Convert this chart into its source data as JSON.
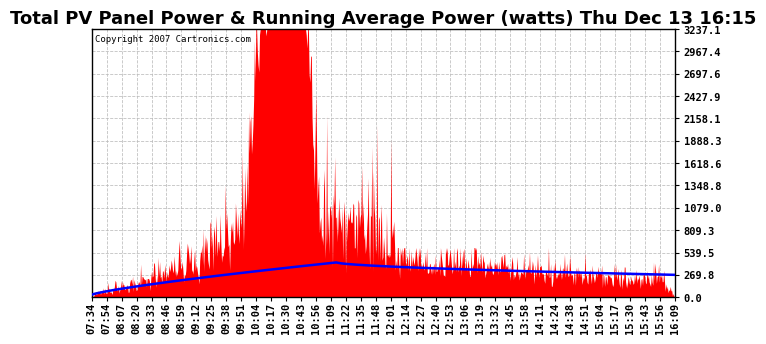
{
  "title": "Total PV Panel Power & Running Average Power (watts) Thu Dec 13 16:15",
  "copyright": "Copyright 2007 Cartronics.com",
  "ylabel_ticks": [
    0.0,
    269.8,
    539.5,
    809.3,
    1079.0,
    1348.8,
    1618.6,
    1888.3,
    2158.1,
    2427.9,
    2697.6,
    2967.4,
    3237.1
  ],
  "xlabels": [
    "07:34",
    "07:54",
    "08:07",
    "08:20",
    "08:33",
    "08:46",
    "08:59",
    "09:12",
    "09:25",
    "09:38",
    "09:51",
    "10:04",
    "10:17",
    "10:30",
    "10:43",
    "10:56",
    "11:09",
    "11:22",
    "11:35",
    "11:48",
    "12:01",
    "12:14",
    "12:27",
    "12:40",
    "12:53",
    "13:06",
    "13:19",
    "13:32",
    "13:45",
    "13:58",
    "14:11",
    "14:24",
    "14:38",
    "14:51",
    "15:04",
    "15:17",
    "15:30",
    "15:43",
    "15:56",
    "16:09"
  ],
  "ymax": 3237.1,
  "ymin": 0.0,
  "bg_color": "#ffffff",
  "grid_color": "#bbbbbb",
  "fill_color": "#ff0000",
  "line_color": "#0000ff",
  "title_fontsize": 13,
  "tick_fontsize": 7.5
}
